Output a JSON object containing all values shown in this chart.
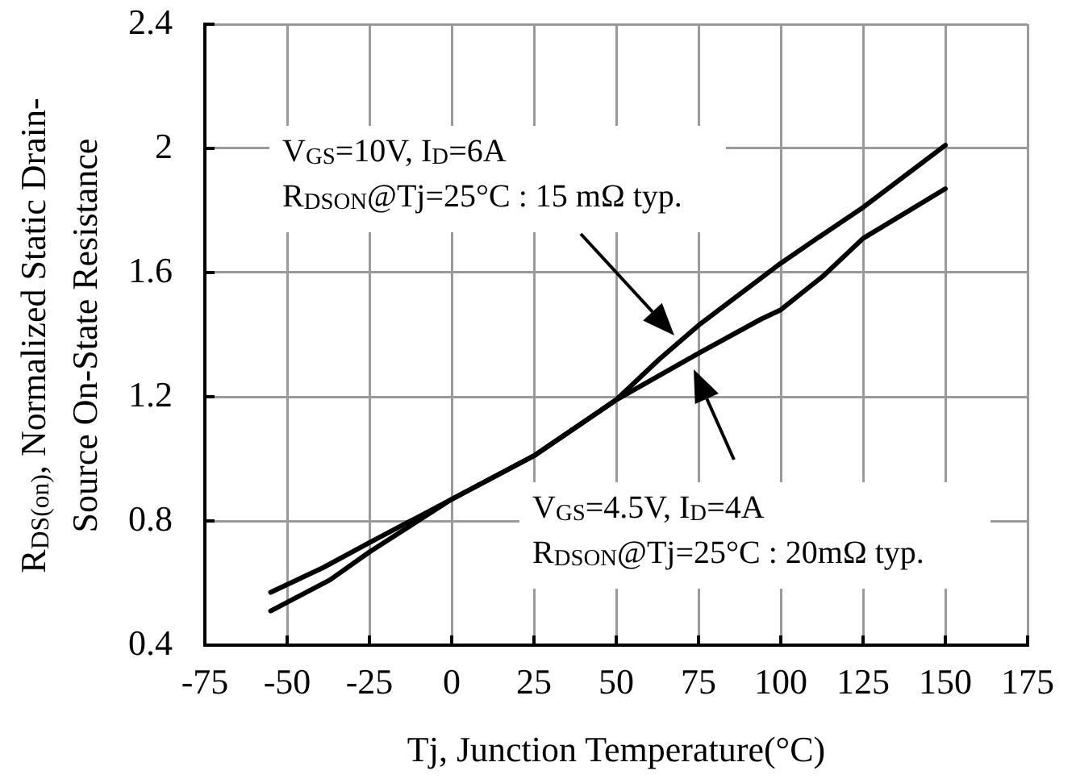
{
  "chart_data": {
    "type": "line",
    "xlabel": "Tj, Junction Temperature(°C)",
    "ylabel": "R$_{DS(on)}$, Normalized Static Drain-Source On-State Resistance",
    "xlim": [
      -75,
      175
    ],
    "xticks": [
      -75,
      -50,
      -25,
      0,
      25,
      50,
      75,
      100,
      125,
      150,
      175
    ],
    "ylim": [
      0.4,
      2.4
    ],
    "yticks": [
      0.4,
      0.8,
      1.2,
      1.6,
      2,
      2.4
    ],
    "grid": true,
    "series": [
      {
        "color": "#000000",
        "x": [
          -55,
          -37,
          -25,
          0,
          25,
          50,
          63,
          75,
          100,
          111,
          125,
          150
        ],
        "values": [
          0.51,
          0.61,
          0.7,
          0.87,
          1.01,
          1.19,
          1.32,
          1.43,
          1.63,
          1.71,
          1.81,
          2.01
        ]
      },
      {
        "color": "#000000",
        "x": [
          -55,
          -39,
          -25,
          0,
          25,
          50,
          75,
          94,
          100,
          113,
          125,
          150
        ],
        "values": [
          0.57,
          0.65,
          0.73,
          0.87,
          1.01,
          1.19,
          1.34,
          1.45,
          1.48,
          1.59,
          1.71,
          1.87
        ]
      }
    ],
    "annotations": [
      "V$_{GS}$=10V, I$_{D}$=6A",
      "R$_{DSON}$@Tj=25°C : 15 mΩ typ.",
      "V$_{GS}$=4.5V, I$_{D}$=4A",
      "R$_{DSON}$@Tj=25°C : 20mΩ typ."
    ]
  }
}
